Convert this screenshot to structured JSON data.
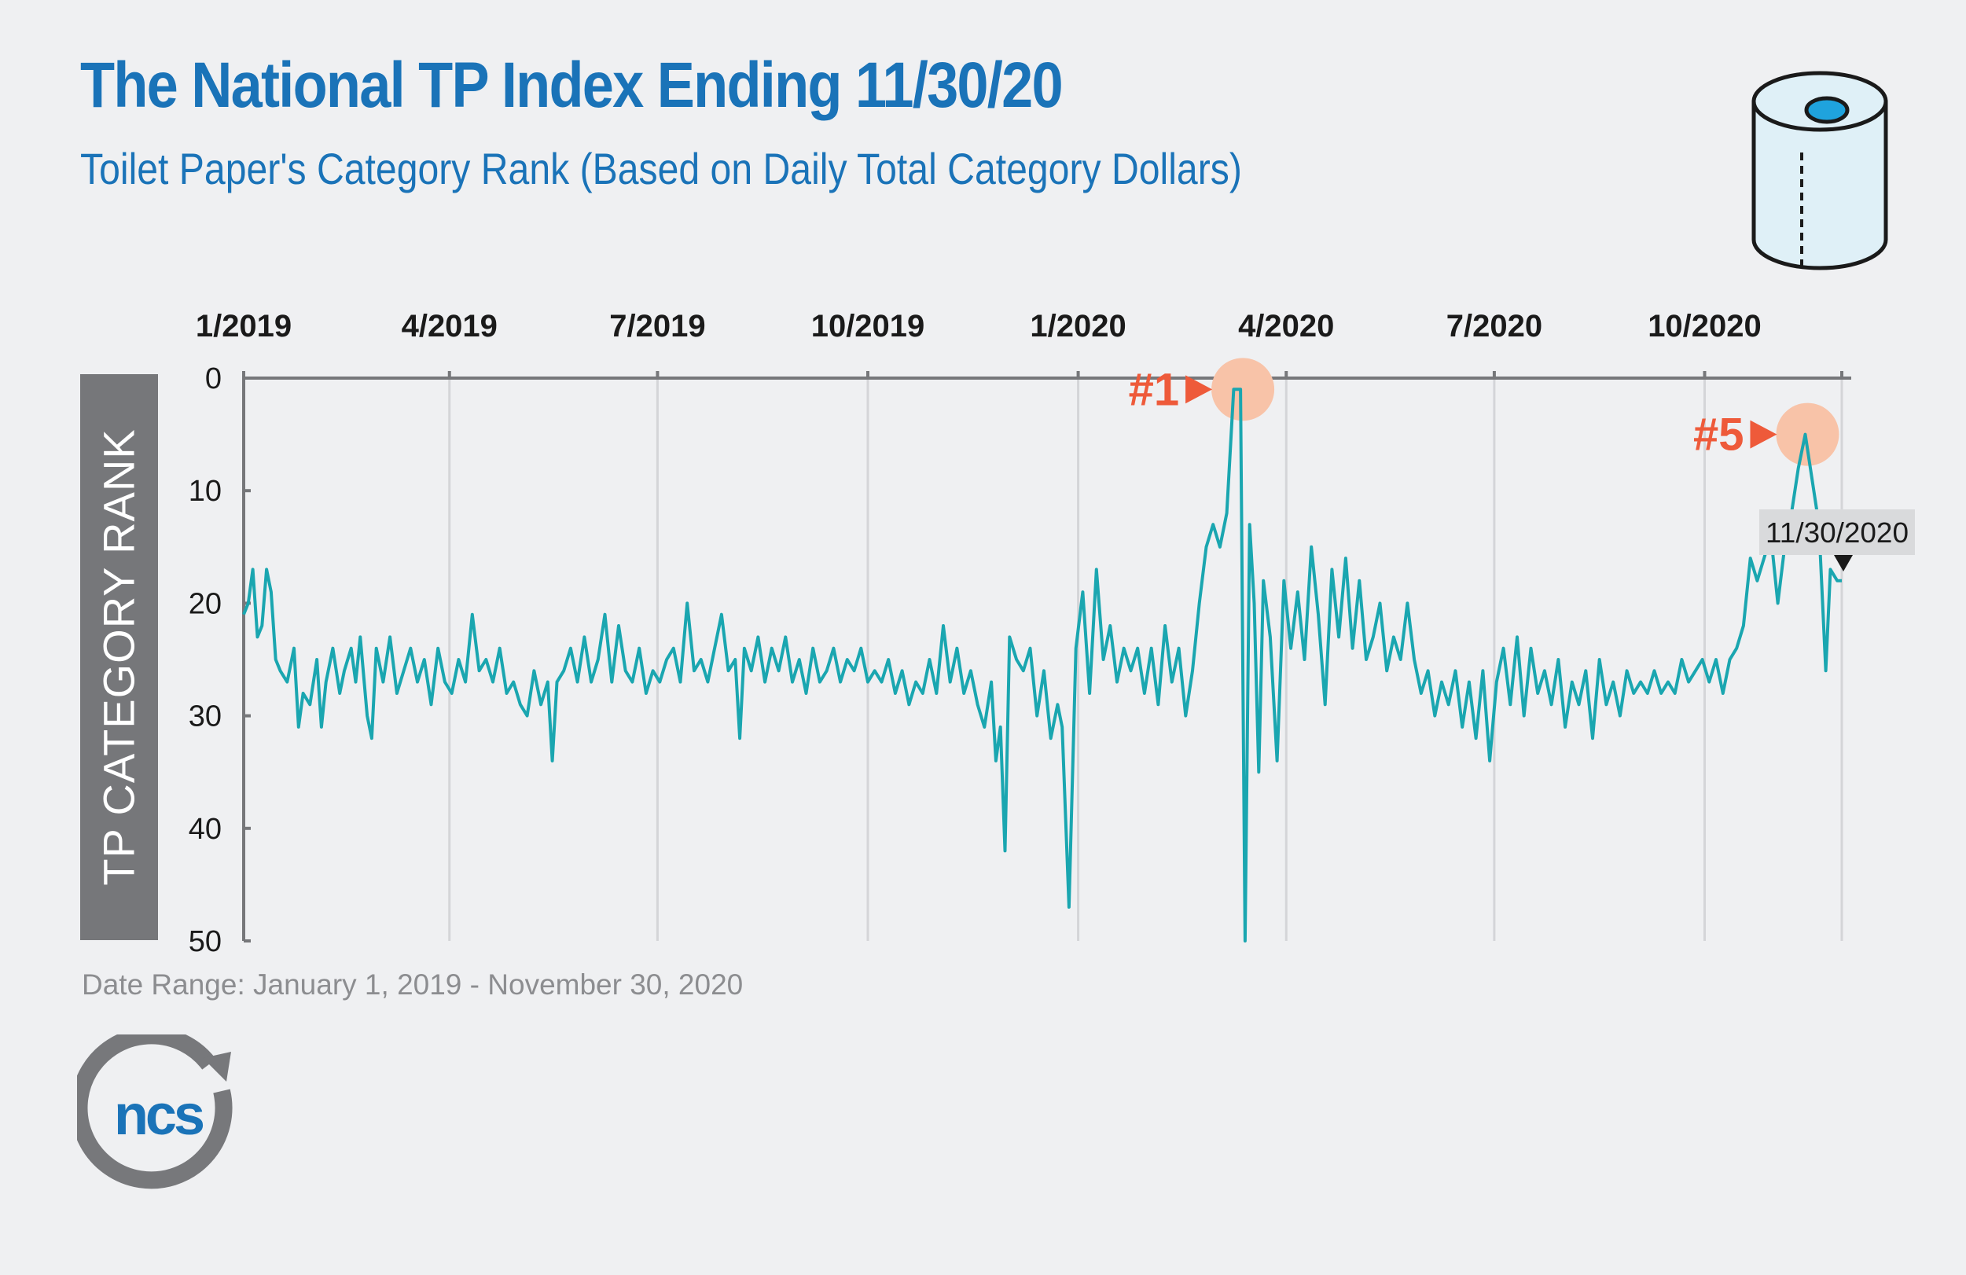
{
  "title": "The National TP Index Ending 11/30/20",
  "subtitle": "Toilet Paper's Category Rank (Based on Daily Total Category Dollars)",
  "footnote": "Date Range: January 1, 2019 - November 30, 2020",
  "logo_text": "ncs",
  "colors": {
    "title": "#1a73b8",
    "line": "#1aa6b0",
    "highlight": "#f8c3a8",
    "annotation": "#ee5a3a",
    "axis_label_bg": "#76777a",
    "background": "#eff0f2"
  },
  "icons": [
    "toilet-paper-roll-icon",
    "ncs-logo"
  ],
  "chart_data": {
    "type": "line",
    "title": "The National TP Index Ending 11/30/20",
    "subtitle": "Toilet Paper's Category Rank (Based on Daily Total Category Dollars)",
    "ylabel": "TP CATEGORY RANK",
    "xlabel": "",
    "x_ticks": [
      "1/2019",
      "4/2019",
      "7/2019",
      "10/2019",
      "1/2020",
      "4/2020",
      "7/2020",
      "10/2020"
    ],
    "x_tick_dates": [
      "2019-01-01",
      "2019-04-01",
      "2019-07-01",
      "2019-10-01",
      "2020-01-01",
      "2020-04-01",
      "2020-07-01",
      "2020-10-01"
    ],
    "xlim": [
      "2019-01-01",
      "2020-11-30"
    ],
    "y_ticks": [
      0,
      10,
      20,
      30,
      40,
      50
    ],
    "ylim": [
      0,
      50
    ],
    "y_inverted": true,
    "grid": "vertical",
    "annotations": [
      {
        "label": "#1",
        "x": "2020-03-12",
        "y": 1
      },
      {
        "label": "#5",
        "x": "2020-11-14",
        "y": 5
      },
      {
        "label": "11/30/2020",
        "x": "2020-11-30",
        "y": 18
      }
    ],
    "series": [
      {
        "name": "",
        "points": [
          [
            "2019-01-01",
            21
          ],
          [
            "2019-01-03",
            20
          ],
          [
            "2019-01-05",
            17
          ],
          [
            "2019-01-07",
            23
          ],
          [
            "2019-01-09",
            22
          ],
          [
            "2019-01-11",
            17
          ],
          [
            "2019-01-13",
            19
          ],
          [
            "2019-01-15",
            25
          ],
          [
            "2019-01-17",
            26
          ],
          [
            "2019-01-20",
            27
          ],
          [
            "2019-01-23",
            24
          ],
          [
            "2019-01-25",
            31
          ],
          [
            "2019-01-27",
            28
          ],
          [
            "2019-01-30",
            29
          ],
          [
            "2019-02-02",
            25
          ],
          [
            "2019-02-04",
            31
          ],
          [
            "2019-02-06",
            27
          ],
          [
            "2019-02-09",
            24
          ],
          [
            "2019-02-12",
            28
          ],
          [
            "2019-02-14",
            26
          ],
          [
            "2019-02-17",
            24
          ],
          [
            "2019-02-19",
            27
          ],
          [
            "2019-02-21",
            23
          ],
          [
            "2019-02-24",
            30
          ],
          [
            "2019-02-26",
            32
          ],
          [
            "2019-02-28",
            24
          ],
          [
            "2019-03-03",
            27
          ],
          [
            "2019-03-06",
            23
          ],
          [
            "2019-03-09",
            28
          ],
          [
            "2019-03-12",
            26
          ],
          [
            "2019-03-15",
            24
          ],
          [
            "2019-03-18",
            27
          ],
          [
            "2019-03-21",
            25
          ],
          [
            "2019-03-24",
            29
          ],
          [
            "2019-03-27",
            24
          ],
          [
            "2019-03-30",
            27
          ],
          [
            "2019-04-02",
            28
          ],
          [
            "2019-04-05",
            25
          ],
          [
            "2019-04-08",
            27
          ],
          [
            "2019-04-11",
            21
          ],
          [
            "2019-04-14",
            26
          ],
          [
            "2019-04-17",
            25
          ],
          [
            "2019-04-20",
            27
          ],
          [
            "2019-04-23",
            24
          ],
          [
            "2019-04-26",
            28
          ],
          [
            "2019-04-29",
            27
          ],
          [
            "2019-05-02",
            29
          ],
          [
            "2019-05-05",
            30
          ],
          [
            "2019-05-08",
            26
          ],
          [
            "2019-05-11",
            29
          ],
          [
            "2019-05-14",
            27
          ],
          [
            "2019-05-16",
            34
          ],
          [
            "2019-05-18",
            27
          ],
          [
            "2019-05-21",
            26
          ],
          [
            "2019-05-24",
            24
          ],
          [
            "2019-05-27",
            27
          ],
          [
            "2019-05-30",
            23
          ],
          [
            "2019-06-02",
            27
          ],
          [
            "2019-06-05",
            25
          ],
          [
            "2019-06-08",
            21
          ],
          [
            "2019-06-11",
            27
          ],
          [
            "2019-06-14",
            22
          ],
          [
            "2019-06-17",
            26
          ],
          [
            "2019-06-20",
            27
          ],
          [
            "2019-06-23",
            24
          ],
          [
            "2019-06-26",
            28
          ],
          [
            "2019-06-29",
            26
          ],
          [
            "2019-07-02",
            27
          ],
          [
            "2019-07-05",
            25
          ],
          [
            "2019-07-08",
            24
          ],
          [
            "2019-07-11",
            27
          ],
          [
            "2019-07-14",
            20
          ],
          [
            "2019-07-17",
            26
          ],
          [
            "2019-07-20",
            25
          ],
          [
            "2019-07-23",
            27
          ],
          [
            "2019-07-26",
            24
          ],
          [
            "2019-07-29",
            21
          ],
          [
            "2019-08-01",
            26
          ],
          [
            "2019-08-04",
            25
          ],
          [
            "2019-08-06",
            32
          ],
          [
            "2019-08-08",
            24
          ],
          [
            "2019-08-11",
            26
          ],
          [
            "2019-08-14",
            23
          ],
          [
            "2019-08-17",
            27
          ],
          [
            "2019-08-20",
            24
          ],
          [
            "2019-08-23",
            26
          ],
          [
            "2019-08-26",
            23
          ],
          [
            "2019-08-29",
            27
          ],
          [
            "2019-09-01",
            25
          ],
          [
            "2019-09-04",
            28
          ],
          [
            "2019-09-07",
            24
          ],
          [
            "2019-09-10",
            27
          ],
          [
            "2019-09-13",
            26
          ],
          [
            "2019-09-16",
            24
          ],
          [
            "2019-09-19",
            27
          ],
          [
            "2019-09-22",
            25
          ],
          [
            "2019-09-25",
            26
          ],
          [
            "2019-09-28",
            24
          ],
          [
            "2019-10-01",
            27
          ],
          [
            "2019-10-04",
            26
          ],
          [
            "2019-10-07",
            27
          ],
          [
            "2019-10-10",
            25
          ],
          [
            "2019-10-13",
            28
          ],
          [
            "2019-10-16",
            26
          ],
          [
            "2019-10-19",
            29
          ],
          [
            "2019-10-22",
            27
          ],
          [
            "2019-10-25",
            28
          ],
          [
            "2019-10-28",
            25
          ],
          [
            "2019-10-31",
            28
          ],
          [
            "2019-11-03",
            22
          ],
          [
            "2019-11-06",
            27
          ],
          [
            "2019-11-09",
            24
          ],
          [
            "2019-11-12",
            28
          ],
          [
            "2019-11-15",
            26
          ],
          [
            "2019-11-18",
            29
          ],
          [
            "2019-11-21",
            31
          ],
          [
            "2019-11-24",
            27
          ],
          [
            "2019-11-26",
            34
          ],
          [
            "2019-11-28",
            31
          ],
          [
            "2019-11-30",
            42
          ],
          [
            "2019-12-02",
            23
          ],
          [
            "2019-12-05",
            25
          ],
          [
            "2019-12-08",
            26
          ],
          [
            "2019-12-11",
            24
          ],
          [
            "2019-12-14",
            30
          ],
          [
            "2019-12-17",
            26
          ],
          [
            "2019-12-20",
            32
          ],
          [
            "2019-12-23",
            29
          ],
          [
            "2019-12-25",
            31
          ],
          [
            "2019-12-28",
            47
          ],
          [
            "2019-12-31",
            24
          ],
          [
            "2020-01-03",
            19
          ],
          [
            "2020-01-06",
            28
          ],
          [
            "2020-01-09",
            17
          ],
          [
            "2020-01-12",
            25
          ],
          [
            "2020-01-15",
            22
          ],
          [
            "2020-01-18",
            27
          ],
          [
            "2020-01-21",
            24
          ],
          [
            "2020-01-24",
            26
          ],
          [
            "2020-01-27",
            24
          ],
          [
            "2020-01-30",
            28
          ],
          [
            "2020-02-02",
            24
          ],
          [
            "2020-02-05",
            29
          ],
          [
            "2020-02-08",
            22
          ],
          [
            "2020-02-11",
            27
          ],
          [
            "2020-02-14",
            24
          ],
          [
            "2020-02-17",
            30
          ],
          [
            "2020-02-20",
            26
          ],
          [
            "2020-02-23",
            20
          ],
          [
            "2020-02-26",
            15
          ],
          [
            "2020-02-29",
            13
          ],
          [
            "2020-03-03",
            15
          ],
          [
            "2020-03-06",
            12
          ],
          [
            "2020-03-09",
            1
          ],
          [
            "2020-03-12",
            1
          ],
          [
            "2020-03-14",
            50
          ],
          [
            "2020-03-16",
            13
          ],
          [
            "2020-03-18",
            20
          ],
          [
            "2020-03-20",
            35
          ],
          [
            "2020-03-22",
            18
          ],
          [
            "2020-03-25",
            23
          ],
          [
            "2020-03-28",
            34
          ],
          [
            "2020-03-31",
            18
          ],
          [
            "2020-04-03",
            24
          ],
          [
            "2020-04-06",
            19
          ],
          [
            "2020-04-09",
            25
          ],
          [
            "2020-04-12",
            15
          ],
          [
            "2020-04-15",
            21
          ],
          [
            "2020-04-18",
            29
          ],
          [
            "2020-04-21",
            17
          ],
          [
            "2020-04-24",
            23
          ],
          [
            "2020-04-27",
            16
          ],
          [
            "2020-04-30",
            24
          ],
          [
            "2020-05-03",
            18
          ],
          [
            "2020-05-06",
            25
          ],
          [
            "2020-05-09",
            23
          ],
          [
            "2020-05-12",
            20
          ],
          [
            "2020-05-15",
            26
          ],
          [
            "2020-05-18",
            23
          ],
          [
            "2020-05-21",
            25
          ],
          [
            "2020-05-24",
            20
          ],
          [
            "2020-05-27",
            25
          ],
          [
            "2020-05-30",
            28
          ],
          [
            "2020-06-02",
            26
          ],
          [
            "2020-06-05",
            30
          ],
          [
            "2020-06-08",
            27
          ],
          [
            "2020-06-11",
            29
          ],
          [
            "2020-06-14",
            26
          ],
          [
            "2020-06-17",
            31
          ],
          [
            "2020-06-20",
            27
          ],
          [
            "2020-06-23",
            32
          ],
          [
            "2020-06-26",
            26
          ],
          [
            "2020-06-29",
            34
          ],
          [
            "2020-07-02",
            27
          ],
          [
            "2020-07-05",
            24
          ],
          [
            "2020-07-08",
            29
          ],
          [
            "2020-07-11",
            23
          ],
          [
            "2020-07-14",
            30
          ],
          [
            "2020-07-17",
            24
          ],
          [
            "2020-07-20",
            28
          ],
          [
            "2020-07-23",
            26
          ],
          [
            "2020-07-26",
            29
          ],
          [
            "2020-07-29",
            25
          ],
          [
            "2020-08-01",
            31
          ],
          [
            "2020-08-04",
            27
          ],
          [
            "2020-08-07",
            29
          ],
          [
            "2020-08-10",
            26
          ],
          [
            "2020-08-13",
            32
          ],
          [
            "2020-08-16",
            25
          ],
          [
            "2020-08-19",
            29
          ],
          [
            "2020-08-22",
            27
          ],
          [
            "2020-08-25",
            30
          ],
          [
            "2020-08-28",
            26
          ],
          [
            "2020-08-31",
            28
          ],
          [
            "2020-09-03",
            27
          ],
          [
            "2020-09-06",
            28
          ],
          [
            "2020-09-09",
            26
          ],
          [
            "2020-09-12",
            28
          ],
          [
            "2020-09-15",
            27
          ],
          [
            "2020-09-18",
            28
          ],
          [
            "2020-09-21",
            25
          ],
          [
            "2020-09-24",
            27
          ],
          [
            "2020-09-27",
            26
          ],
          [
            "2020-09-30",
            25
          ],
          [
            "2020-10-03",
            27
          ],
          [
            "2020-10-06",
            25
          ],
          [
            "2020-10-09",
            28
          ],
          [
            "2020-10-12",
            25
          ],
          [
            "2020-10-15",
            24
          ],
          [
            "2020-10-18",
            22
          ],
          [
            "2020-10-21",
            16
          ],
          [
            "2020-10-24",
            18
          ],
          [
            "2020-10-27",
            16
          ],
          [
            "2020-10-30",
            14
          ],
          [
            "2020-11-02",
            20
          ],
          [
            "2020-11-05",
            15
          ],
          [
            "2020-11-08",
            12
          ],
          [
            "2020-11-11",
            8
          ],
          [
            "2020-11-14",
            5
          ],
          [
            "2020-11-17",
            9
          ],
          [
            "2020-11-20",
            13
          ],
          [
            "2020-11-23",
            26
          ],
          [
            "2020-11-25",
            17
          ],
          [
            "2020-11-28",
            18
          ],
          [
            "2020-11-30",
            18
          ]
        ]
      }
    ]
  }
}
